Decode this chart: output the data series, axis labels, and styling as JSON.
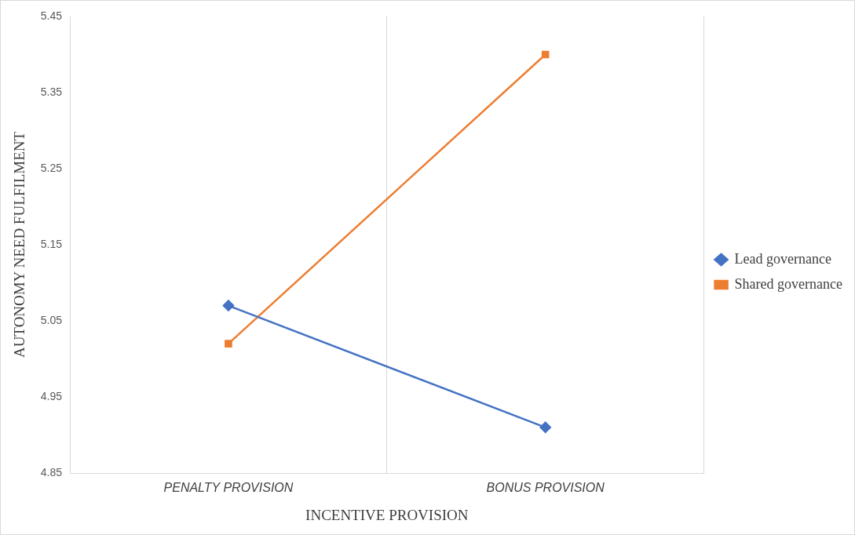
{
  "chart_data": {
    "type": "line",
    "xlabel": "INCENTIVE PROVISION",
    "ylabel": "AUTONOMY NEED FULFILMENT",
    "categories": [
      "PENALTY PROVISION",
      "BONUS PROVISION"
    ],
    "series": [
      {
        "name": "Lead governance",
        "color": "#4472c4",
        "values": [
          5.07,
          4.91
        ],
        "marker": "diamond"
      },
      {
        "name": "Shared governance",
        "color": "#ed7d31",
        "values": [
          5.02,
          5.4
        ],
        "marker": "square"
      }
    ],
    "ylim": [
      4.85,
      5.45
    ],
    "yticks": [
      4.85,
      4.95,
      5.05,
      5.15,
      5.25,
      5.35,
      5.45
    ],
    "grid": "x",
    "legend": "right",
    "line_style": "solid"
  }
}
